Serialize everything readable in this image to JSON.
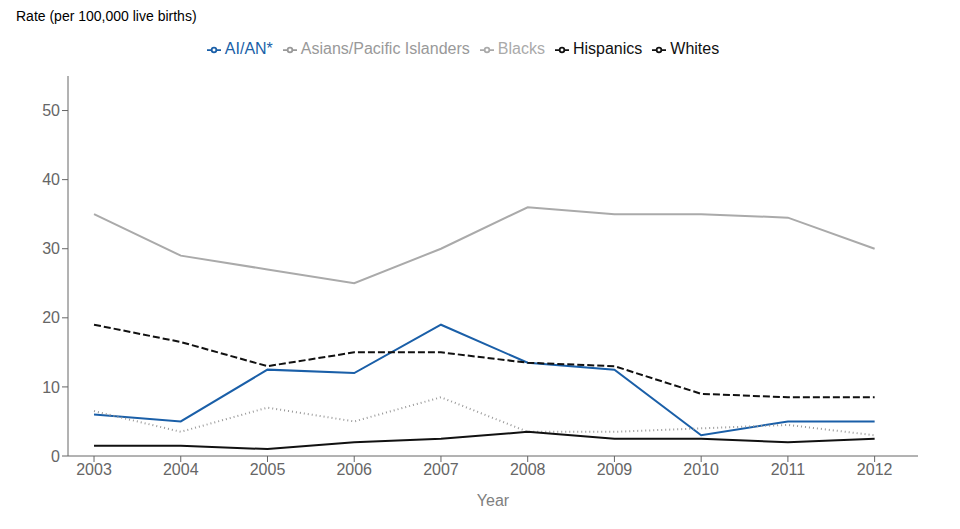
{
  "chart_data": {
    "type": "line",
    "ylabel": "Rate (per 100,000 live births)",
    "xlabel": "Year",
    "x": [
      2003,
      2004,
      2005,
      2006,
      2007,
      2008,
      2009,
      2010,
      2011,
      2012
    ],
    "series": [
      {
        "name": "AI/AN*",
        "color": "#1a5fa8",
        "line_style": "solid",
        "values": [
          6,
          5,
          12.5,
          12,
          19,
          13.5,
          12.5,
          3,
          5,
          5
        ]
      },
      {
        "name": "Asians/Pacific Islanders",
        "color": "#999999",
        "line_style": "dotted",
        "values": [
          6.5,
          3.5,
          7,
          5,
          8.5,
          3.5,
          3.5,
          4,
          4.5,
          3
        ]
      },
      {
        "name": "Blacks",
        "color": "#aaaaaa",
        "line_style": "solid",
        "values": [
          35,
          29,
          27,
          25,
          30,
          36,
          35,
          35,
          34.5,
          30
        ]
      },
      {
        "name": "Hispanics",
        "color": "#111111",
        "line_style": "dashed",
        "values": [
          19,
          16.5,
          13,
          15,
          15,
          13.5,
          13,
          9,
          8.5,
          8.5
        ]
      },
      {
        "name": "Whites",
        "color": "#111111",
        "line_style": "solid",
        "values": [
          1.5,
          1.5,
          1,
          2,
          2.5,
          3.5,
          2.5,
          2.5,
          2,
          2.5
        ]
      }
    ],
    "xlim": [
      2002.7,
      2012.5
    ],
    "xticks": [
      2003,
      2004,
      2005,
      2006,
      2007,
      2008,
      2009,
      2010,
      2011,
      2012
    ],
    "ylim": [
      0,
      55
    ],
    "yticks": [
      0,
      10,
      20,
      30,
      40,
      50
    ],
    "grid": false,
    "legend": "top"
  }
}
